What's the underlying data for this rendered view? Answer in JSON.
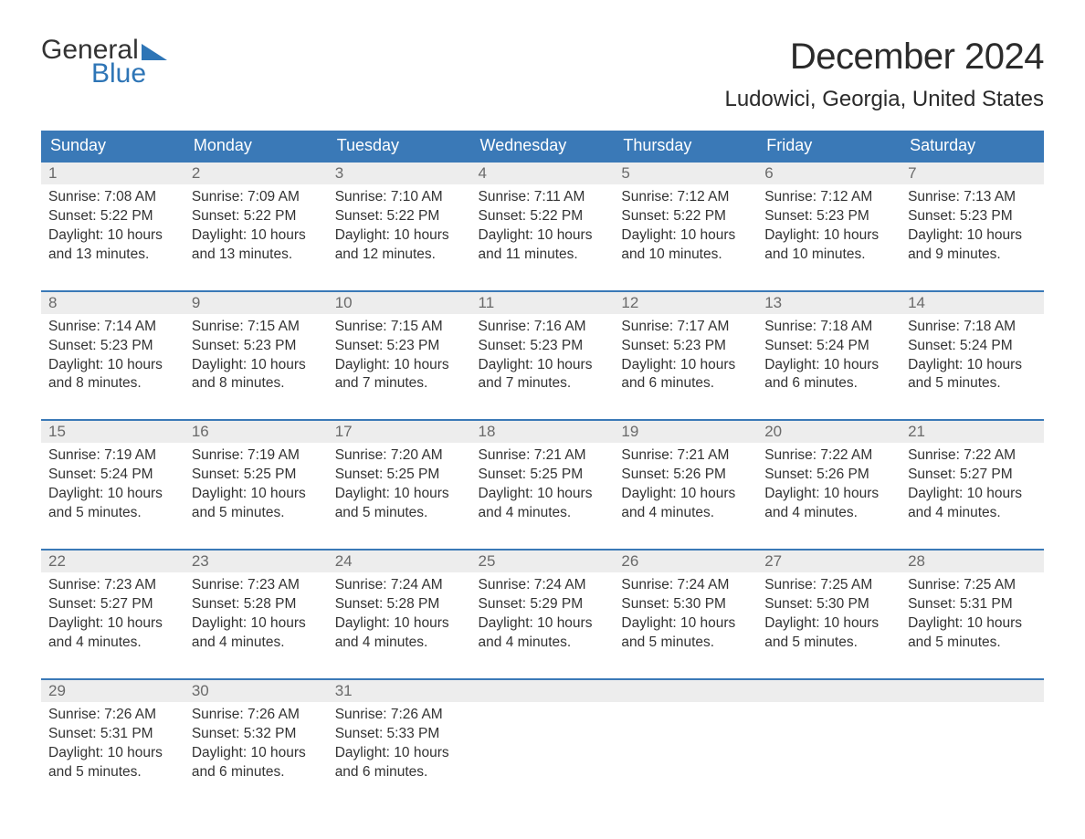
{
  "logo": {
    "top": "General",
    "bottom": "Blue",
    "flag_color": "#2e75b6"
  },
  "title": "December 2024",
  "location": "Ludowici, Georgia, United States",
  "colors": {
    "header_bg": "#3a79b7",
    "header_text": "#ffffff",
    "daynum_bg": "#ededed",
    "daynum_text": "#6a6a6a",
    "body_text": "#333333",
    "rule": "#3a79b7",
    "page_bg": "#ffffff",
    "logo_gray": "#333333",
    "logo_blue": "#2e75b6"
  },
  "typography": {
    "title_fontsize": 40,
    "location_fontsize": 24,
    "dow_fontsize": 18,
    "daynum_fontsize": 17,
    "cell_fontsize": 15.5,
    "font_family": "Arial"
  },
  "days_of_week": [
    "Sunday",
    "Monday",
    "Tuesday",
    "Wednesday",
    "Thursday",
    "Friday",
    "Saturday"
  ],
  "weeks": [
    [
      {
        "n": "1",
        "sunrise": "7:08 AM",
        "sunset": "5:22 PM",
        "daylight": "10 hours and 13 minutes."
      },
      {
        "n": "2",
        "sunrise": "7:09 AM",
        "sunset": "5:22 PM",
        "daylight": "10 hours and 13 minutes."
      },
      {
        "n": "3",
        "sunrise": "7:10 AM",
        "sunset": "5:22 PM",
        "daylight": "10 hours and 12 minutes."
      },
      {
        "n": "4",
        "sunrise": "7:11 AM",
        "sunset": "5:22 PM",
        "daylight": "10 hours and 11 minutes."
      },
      {
        "n": "5",
        "sunrise": "7:12 AM",
        "sunset": "5:22 PM",
        "daylight": "10 hours and 10 minutes."
      },
      {
        "n": "6",
        "sunrise": "7:12 AM",
        "sunset": "5:23 PM",
        "daylight": "10 hours and 10 minutes."
      },
      {
        "n": "7",
        "sunrise": "7:13 AM",
        "sunset": "5:23 PM",
        "daylight": "10 hours and 9 minutes."
      }
    ],
    [
      {
        "n": "8",
        "sunrise": "7:14 AM",
        "sunset": "5:23 PM",
        "daylight": "10 hours and 8 minutes."
      },
      {
        "n": "9",
        "sunrise": "7:15 AM",
        "sunset": "5:23 PM",
        "daylight": "10 hours and 8 minutes."
      },
      {
        "n": "10",
        "sunrise": "7:15 AM",
        "sunset": "5:23 PM",
        "daylight": "10 hours and 7 minutes."
      },
      {
        "n": "11",
        "sunrise": "7:16 AM",
        "sunset": "5:23 PM",
        "daylight": "10 hours and 7 minutes."
      },
      {
        "n": "12",
        "sunrise": "7:17 AM",
        "sunset": "5:23 PM",
        "daylight": "10 hours and 6 minutes."
      },
      {
        "n": "13",
        "sunrise": "7:18 AM",
        "sunset": "5:24 PM",
        "daylight": "10 hours and 6 minutes."
      },
      {
        "n": "14",
        "sunrise": "7:18 AM",
        "sunset": "5:24 PM",
        "daylight": "10 hours and 5 minutes."
      }
    ],
    [
      {
        "n": "15",
        "sunrise": "7:19 AM",
        "sunset": "5:24 PM",
        "daylight": "10 hours and 5 minutes."
      },
      {
        "n": "16",
        "sunrise": "7:19 AM",
        "sunset": "5:25 PM",
        "daylight": "10 hours and 5 minutes."
      },
      {
        "n": "17",
        "sunrise": "7:20 AM",
        "sunset": "5:25 PM",
        "daylight": "10 hours and 5 minutes."
      },
      {
        "n": "18",
        "sunrise": "7:21 AM",
        "sunset": "5:25 PM",
        "daylight": "10 hours and 4 minutes."
      },
      {
        "n": "19",
        "sunrise": "7:21 AM",
        "sunset": "5:26 PM",
        "daylight": "10 hours and 4 minutes."
      },
      {
        "n": "20",
        "sunrise": "7:22 AM",
        "sunset": "5:26 PM",
        "daylight": "10 hours and 4 minutes."
      },
      {
        "n": "21",
        "sunrise": "7:22 AM",
        "sunset": "5:27 PM",
        "daylight": "10 hours and 4 minutes."
      }
    ],
    [
      {
        "n": "22",
        "sunrise": "7:23 AM",
        "sunset": "5:27 PM",
        "daylight": "10 hours and 4 minutes."
      },
      {
        "n": "23",
        "sunrise": "7:23 AM",
        "sunset": "5:28 PM",
        "daylight": "10 hours and 4 minutes."
      },
      {
        "n": "24",
        "sunrise": "7:24 AM",
        "sunset": "5:28 PM",
        "daylight": "10 hours and 4 minutes."
      },
      {
        "n": "25",
        "sunrise": "7:24 AM",
        "sunset": "5:29 PM",
        "daylight": "10 hours and 4 minutes."
      },
      {
        "n": "26",
        "sunrise": "7:24 AM",
        "sunset": "5:30 PM",
        "daylight": "10 hours and 5 minutes."
      },
      {
        "n": "27",
        "sunrise": "7:25 AM",
        "sunset": "5:30 PM",
        "daylight": "10 hours and 5 minutes."
      },
      {
        "n": "28",
        "sunrise": "7:25 AM",
        "sunset": "5:31 PM",
        "daylight": "10 hours and 5 minutes."
      }
    ],
    [
      {
        "n": "29",
        "sunrise": "7:26 AM",
        "sunset": "5:31 PM",
        "daylight": "10 hours and 5 minutes."
      },
      {
        "n": "30",
        "sunrise": "7:26 AM",
        "sunset": "5:32 PM",
        "daylight": "10 hours and 6 minutes."
      },
      {
        "n": "31",
        "sunrise": "7:26 AM",
        "sunset": "5:33 PM",
        "daylight": "10 hours and 6 minutes."
      },
      null,
      null,
      null,
      null
    ]
  ],
  "labels": {
    "sunrise_prefix": "Sunrise: ",
    "sunset_prefix": "Sunset: ",
    "daylight_prefix": "Daylight: "
  }
}
